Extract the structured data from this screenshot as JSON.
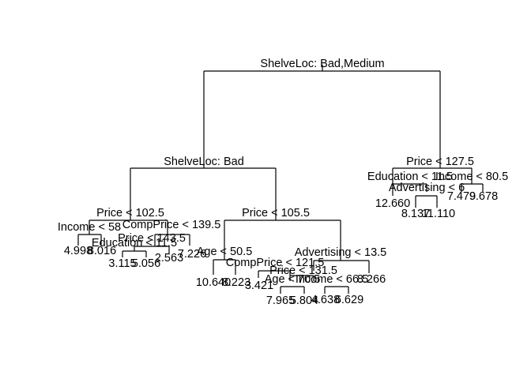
{
  "tree": {
    "nodes": [
      {
        "id": "n1",
        "label": "ShelveLoc: Bad,Medium"
      },
      {
        "id": "n2",
        "label": "ShelveLoc: Bad"
      },
      {
        "id": "n3",
        "label": "Price < 127.5"
      },
      {
        "id": "n4",
        "label": "Price < 102.5"
      },
      {
        "id": "n5",
        "label": "Price < 105.5"
      },
      {
        "id": "n6",
        "label": "Education < 11.5"
      },
      {
        "id": "n7",
        "label": "Income < 80.5"
      },
      {
        "id": "n8",
        "label": "Advertising < 6"
      },
      {
        "id": "n9",
        "label": "Income < 58"
      },
      {
        "id": "n10",
        "label": "CompPrice < 139.5"
      },
      {
        "id": "n11",
        "label": "Price < 143.5"
      },
      {
        "id": "n12",
        "label": "Education < 11.5"
      },
      {
        "id": "n13",
        "label": "Age < 50.5"
      },
      {
        "id": "n14",
        "label": "Advertising < 13.5"
      },
      {
        "id": "n15",
        "label": "CompPrice < 121.5"
      },
      {
        "id": "n16",
        "label": "Price < 131.5"
      },
      {
        "id": "n17",
        "label": "Age < 70.5"
      },
      {
        "id": "n18",
        "label": "Income < 66.5"
      }
    ],
    "leaves": [
      {
        "id": "l1",
        "label": "12.660"
      },
      {
        "id": "l2",
        "label": "8.137"
      },
      {
        "id": "l3",
        "label": "11.110"
      },
      {
        "id": "l4",
        "label": "7.479"
      },
      {
        "id": "l5",
        "label": "9.678"
      },
      {
        "id": "l6",
        "label": "4.998"
      },
      {
        "id": "l7",
        "label": "8.016"
      },
      {
        "id": "l8",
        "label": "3.115"
      },
      {
        "id": "l9",
        "label": "5.056"
      },
      {
        "id": "l10",
        "label": "2.563"
      },
      {
        "id": "l11",
        "label": "7.226"
      },
      {
        "id": "l12",
        "label": "10.640"
      },
      {
        "id": "l13",
        "label": "8.223"
      },
      {
        "id": "l14",
        "label": "3.421"
      },
      {
        "id": "l15",
        "label": "7.965"
      },
      {
        "id": "l16",
        "label": "5.804"
      },
      {
        "id": "l17",
        "label": "4.638"
      },
      {
        "id": "l18",
        "label": "6.629"
      },
      {
        "id": "l19",
        "label": "8.266"
      }
    ]
  }
}
